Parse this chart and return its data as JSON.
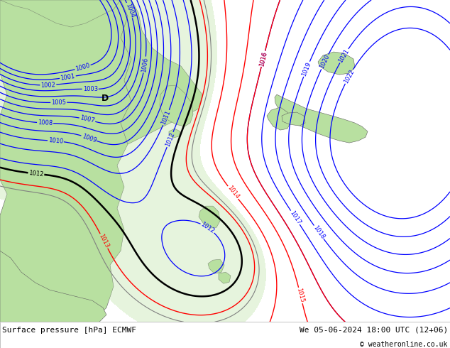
{
  "title_bottom_left": "Surface pressure [hPa] ECMWF",
  "title_bottom_right": "We 05-06-2024 18:00 UTC (12+06)",
  "copyright": "© weatheronline.co.uk",
  "land_color": "#b8e0a0",
  "sea_color": "#d4d4d4",
  "white_color": "#ffffff",
  "red": "#ff0000",
  "blue": "#0000ff",
  "black": "#000000",
  "gray": "#808080",
  "darkgray": "#606060",
  "font_size_bottom": 8,
  "font_size_label": 6
}
